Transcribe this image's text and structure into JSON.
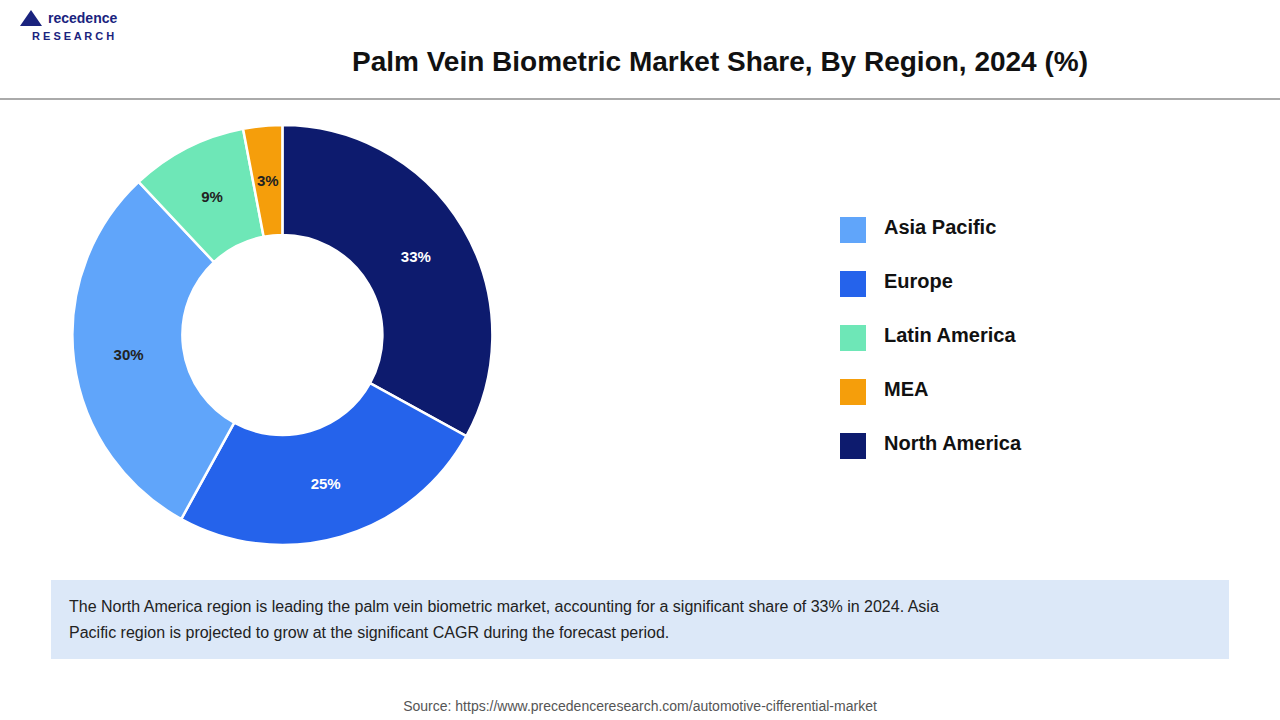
{
  "chart_data": {
    "type": "pie",
    "title": "Palm Vein Biometric Market Share, By Region, 2024 (%)",
    "categories": [
      "North America",
      "Europe",
      "Asia Pacific",
      "Latin America",
      "MEA"
    ],
    "values": [
      33,
      25,
      30,
      9,
      3
    ],
    "value_labels": [
      "33%",
      "25%",
      "30%",
      "9%",
      "3%"
    ],
    "colors": [
      "#0d1b6e",
      "#2563eb",
      "#60a5fa",
      "#6ee7b7",
      "#f59e0b"
    ],
    "data_labels": true,
    "legend": "right",
    "annotations": [
      "The North America region is leading the palm vein biometric market, accounting for a significant share of 33% in 2024. Asia\nPacific region is projected to grow at the significant CAGR during the forecast period.",
      "Source: https://www.precedenceresearch.com/automotive-cifferential-market",
      "recedence",
      "R E S E A R C H"
    ]
  }
}
